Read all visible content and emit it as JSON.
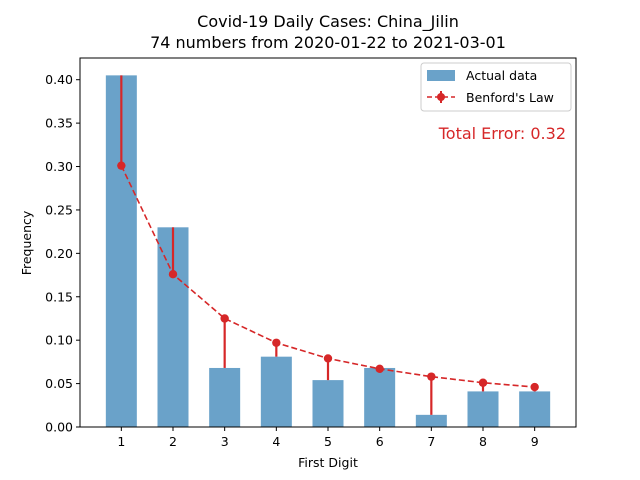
{
  "chart_data": {
    "type": "bar",
    "title": "Covid-19 Daily Cases: China_Jilin",
    "subtitle": "74 numbers from 2020-01-22 to 2021-03-01",
    "xlabel": "First Digit",
    "ylabel": "Frequency",
    "categories": [
      "1",
      "2",
      "3",
      "4",
      "5",
      "6",
      "7",
      "8",
      "9"
    ],
    "ylim": [
      0,
      0.425
    ],
    "yticks": [
      "0.00",
      "0.05",
      "0.10",
      "0.15",
      "0.20",
      "0.25",
      "0.30",
      "0.35",
      "0.40"
    ],
    "series": [
      {
        "name": "Actual data",
        "kind": "bar",
        "color": "#6aa2c9",
        "values": [
          0.405,
          0.23,
          0.068,
          0.081,
          0.054,
          0.068,
          0.014,
          0.041,
          0.041
        ]
      },
      {
        "name": "Benford's Law",
        "kind": "line-dashed-markers",
        "color": "#d62728",
        "values": [
          0.301,
          0.176,
          0.125,
          0.097,
          0.079,
          0.067,
          0.058,
          0.051,
          0.046
        ]
      }
    ],
    "annotation": "Total Error: 0.32",
    "grid": false,
    "legend_position": "top-right"
  }
}
